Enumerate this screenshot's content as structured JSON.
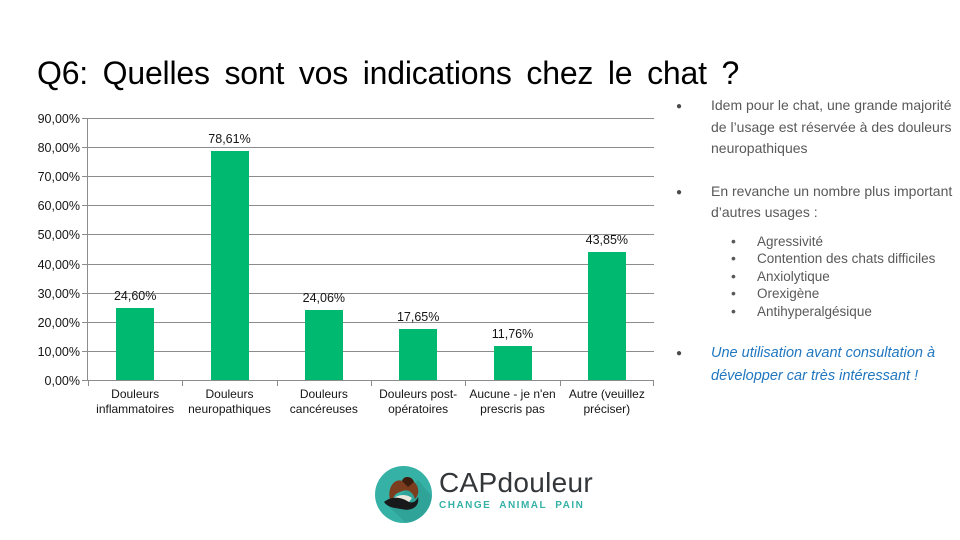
{
  "slide": {
    "title": "Q6: Quelles sont vos indications chez le chat ?"
  },
  "chart_data": {
    "type": "bar",
    "title": "",
    "xlabel": "",
    "ylabel": "",
    "categories": [
      "Douleurs inflammatoires",
      "Douleurs neuropathiques",
      "Douleurs cancéreuses",
      "Douleurs post-opératoires",
      "Aucune - je n'en prescris pas",
      "Autre (veuillez préciser)"
    ],
    "values": [
      24.6,
      78.61,
      24.06,
      17.65,
      11.76,
      43.85
    ],
    "value_labels": [
      "24,60%",
      "78,61%",
      "24,06%",
      "17,65%",
      "11,76%",
      "43,85%"
    ],
    "ylim": [
      0,
      90
    ],
    "y_ticks": [
      {
        "value": 0,
        "label": "0,00%"
      },
      {
        "value": 10,
        "label": "10,00%"
      },
      {
        "value": 20,
        "label": "20,00%"
      },
      {
        "value": 30,
        "label": "30,00%"
      },
      {
        "value": 40,
        "label": "40,00%"
      },
      {
        "value": 50,
        "label": "50,00%"
      },
      {
        "value": 60,
        "label": "60,00%"
      },
      {
        "value": 70,
        "label": "70,00%"
      },
      {
        "value": 80,
        "label": "80,00%"
      },
      {
        "value": 90,
        "label": "90,00%"
      }
    ],
    "grid": true,
    "legend": "none",
    "bar_color": "#00b971",
    "grid_color": "#8c8c8c"
  },
  "notes": {
    "bullet1": "Idem pour le chat, une grande majorité de l’usage est réservée à des douleurs neuropathiques",
    "bullet2": "En revanche un nombre plus important d’autres usages :",
    "sub_bullets": [
      "Agressivité",
      "Contention des chats difficiles",
      "Anxiolytique",
      "Orexigène",
      "Antihyperalgésique"
    ],
    "conclusion": "Une utilisation avant consultation à développer car très intéressant !",
    "text_color": "#595959",
    "accent_color": "#2077c0"
  },
  "logo": {
    "wordmark_primary": "CAP",
    "wordmark_secondary": "douleur",
    "tagline": "CHANGE ANIMAL PAIN",
    "teal": "#35b1a6"
  }
}
